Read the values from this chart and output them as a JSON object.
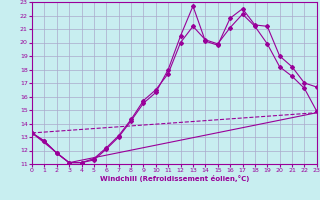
{
  "xlabel": "Windchill (Refroidissement éolien,°C)",
  "bg_color": "#c8eef0",
  "line_color": "#990099",
  "grid_color": "#aaaacc",
  "xmin": 0,
  "xmax": 23,
  "ymin": 11,
  "ymax": 23,
  "line1_x": [
    0,
    1,
    2,
    3,
    4,
    5,
    6,
    7,
    8,
    9,
    10,
    11,
    12,
    13,
    14,
    15,
    16,
    17,
    18,
    19,
    20,
    21,
    22,
    23
  ],
  "line1_y": [
    13.3,
    12.7,
    11.8,
    11.1,
    11.1,
    11.3,
    12.1,
    13.0,
    14.2,
    15.5,
    16.3,
    18.0,
    20.5,
    22.7,
    20.1,
    19.8,
    21.8,
    22.5,
    21.3,
    21.2,
    19.0,
    18.2,
    17.0,
    16.7
  ],
  "line2_x": [
    0,
    1,
    2,
    3,
    4,
    5,
    6,
    7,
    8,
    9,
    10,
    11,
    12,
    13,
    14,
    15,
    16,
    17,
    18,
    19,
    20,
    21,
    22,
    23
  ],
  "line2_y": [
    13.3,
    12.7,
    11.8,
    11.1,
    11.1,
    11.4,
    12.2,
    13.1,
    14.3,
    15.7,
    16.5,
    17.7,
    20.0,
    21.2,
    20.2,
    19.9,
    21.1,
    22.1,
    21.2,
    19.9,
    18.2,
    17.5,
    16.6,
    14.9
  ],
  "line3_x": [
    0,
    3,
    23
  ],
  "line3_y": [
    13.3,
    11.1,
    14.8
  ],
  "line4_x": [
    0,
    23
  ],
  "line4_y": [
    13.3,
    14.8
  ],
  "yticks": [
    11,
    12,
    13,
    14,
    15,
    16,
    17,
    18,
    19,
    20,
    21,
    22,
    23
  ],
  "xticks": [
    0,
    1,
    2,
    3,
    4,
    5,
    6,
    7,
    8,
    9,
    10,
    11,
    12,
    13,
    14,
    15,
    16,
    17,
    18,
    19,
    20,
    21,
    22,
    23
  ]
}
